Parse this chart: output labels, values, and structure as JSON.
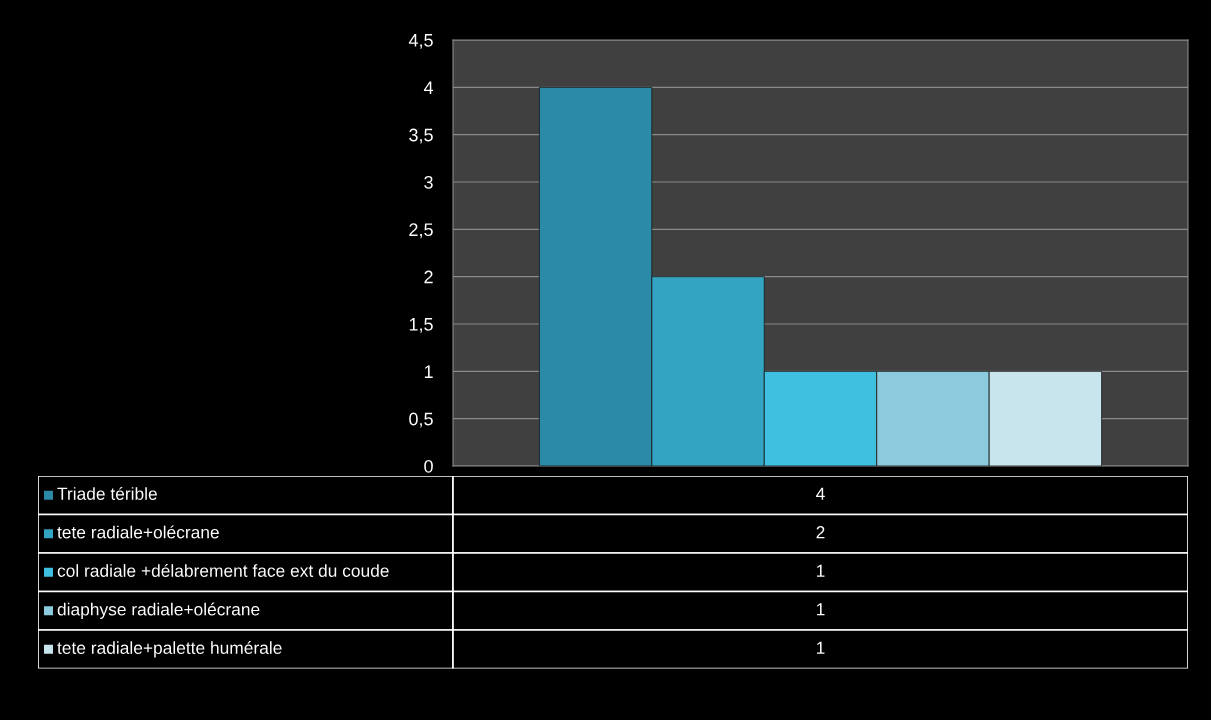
{
  "chart_data": {
    "type": "bar",
    "categories": [
      null
    ],
    "series": [
      {
        "name": "Triade térible",
        "color": "#2b8aa8",
        "values": [
          4
        ]
      },
      {
        "name": "tete radiale+olécrane",
        "color": "#33a5c3",
        "values": [
          2
        ]
      },
      {
        "name": "col radiale +délabrement face ext du coude",
        "color": "#3fc0e0",
        "values": [
          1
        ]
      },
      {
        "name": "diaphyse radiale+olécrane",
        "color": "#8ccadd",
        "values": [
          1
        ]
      },
      {
        "name": "tete radiale+palette humérale",
        "color": "#c8e5ee",
        "values": [
          1
        ]
      }
    ],
    "ylim": [
      0,
      4.5
    ],
    "yticks": [
      0,
      {
        "value": 0.5,
        "label": "0,5"
      },
      1,
      {
        "value": 1.5,
        "label": "1,5"
      },
      2,
      {
        "value": 2.5,
        "label": "2,5"
      },
      3,
      {
        "value": 3.5,
        "label": "3,5"
      },
      4,
      {
        "value": 4.5,
        "label": "4,5"
      }
    ],
    "grid": "y",
    "legend": "bottom",
    "annotations": [
      "4",
      "2",
      "1",
      "1",
      "1"
    ]
  }
}
